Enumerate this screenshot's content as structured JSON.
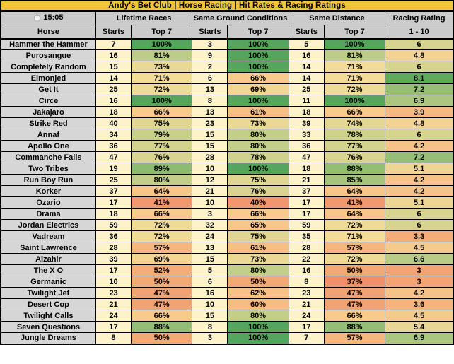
{
  "title": "Andy's Bet Club | Horse Racing | Hit Rates & Racing Ratings",
  "header": {
    "time": "15:05",
    "groups": [
      "Lifetime Races",
      "Same Ground Conditions",
      "Same Distance"
    ],
    "rating_group": "Racing Rating",
    "horse_col": "Horse",
    "starts_col": "Starts",
    "top7_col": "Top 7",
    "rating_col": "1 - 10"
  },
  "colors": {
    "banner_bg": "#F1C43C",
    "header_bg": "#CBCBCB",
    "name_bg": "#D6D6D6",
    "starts_bg": "#FDF2CA",
    "border": "#000000",
    "percent_scale": {
      "min": 37,
      "max": 100,
      "stops": [
        [
          0,
          "#F0906B"
        ],
        [
          0.21,
          "#F3A976"
        ],
        [
          0.46,
          "#F8CA8B"
        ],
        [
          0.54,
          "#F3DC97"
        ],
        [
          0.63,
          "#D5D48F"
        ],
        [
          0.71,
          "#B9CB84"
        ],
        [
          0.82,
          "#90BC74"
        ],
        [
          1,
          "#55A55C"
        ]
      ]
    },
    "rating_scale": {
      "min": 1,
      "max": 10,
      "stops": [
        [
          0,
          "#F08A68"
        ],
        [
          0.22,
          "#F4A474"
        ],
        [
          0.31,
          "#F7B77F"
        ],
        [
          0.42,
          "#F2D392"
        ],
        [
          0.5,
          "#E6D894"
        ],
        [
          0.56,
          "#D5D48E"
        ],
        [
          0.66,
          "#A8C57E"
        ],
        [
          0.7,
          "#8FBB73"
        ],
        [
          0.79,
          "#5FAA5E"
        ],
        [
          1,
          "#3F9B50"
        ]
      ]
    }
  },
  "rows": [
    {
      "horse": "Hammer the Hammer",
      "lifetime_starts": 7,
      "lifetime_top7": 100,
      "ground_starts": 3,
      "ground_top7": 100,
      "distance_starts": 5,
      "distance_top7": 100,
      "rating": 6
    },
    {
      "horse": "Purosangue",
      "lifetime_starts": 16,
      "lifetime_top7": 81,
      "ground_starts": 9,
      "ground_top7": 100,
      "distance_starts": 16,
      "distance_top7": 81,
      "rating": 4.8
    },
    {
      "horse": "Completely Random",
      "lifetime_starts": 15,
      "lifetime_top7": 73,
      "ground_starts": 2,
      "ground_top7": 100,
      "distance_starts": 14,
      "distance_top7": 71,
      "rating": 6
    },
    {
      "horse": "Elmonjed",
      "lifetime_starts": 14,
      "lifetime_top7": 71,
      "ground_starts": 6,
      "ground_top7": 66,
      "distance_starts": 14,
      "distance_top7": 71,
      "rating": 8.1
    },
    {
      "horse": "Get It",
      "lifetime_starts": 25,
      "lifetime_top7": 72,
      "ground_starts": 13,
      "ground_top7": 69,
      "distance_starts": 25,
      "distance_top7": 72,
      "rating": 7.2
    },
    {
      "horse": "Circe",
      "lifetime_starts": 16,
      "lifetime_top7": 100,
      "ground_starts": 8,
      "ground_top7": 100,
      "distance_starts": 11,
      "distance_top7": 100,
      "rating": 6.9
    },
    {
      "horse": "Jakajaro",
      "lifetime_starts": 18,
      "lifetime_top7": 66,
      "ground_starts": 13,
      "ground_top7": 61,
      "distance_starts": 18,
      "distance_top7": 66,
      "rating": 3.9
    },
    {
      "horse": "Strike Red",
      "lifetime_starts": 40,
      "lifetime_top7": 75,
      "ground_starts": 23,
      "ground_top7": 73,
      "distance_starts": 39,
      "distance_top7": 74,
      "rating": 4.8
    },
    {
      "horse": "Annaf",
      "lifetime_starts": 34,
      "lifetime_top7": 79,
      "ground_starts": 15,
      "ground_top7": 80,
      "distance_starts": 33,
      "distance_top7": 78,
      "rating": 6
    },
    {
      "horse": "Apollo One",
      "lifetime_starts": 36,
      "lifetime_top7": 77,
      "ground_starts": 15,
      "ground_top7": 80,
      "distance_starts": 36,
      "distance_top7": 77,
      "rating": 4.2
    },
    {
      "horse": "Commanche Falls",
      "lifetime_starts": 47,
      "lifetime_top7": 76,
      "ground_starts": 28,
      "ground_top7": 78,
      "distance_starts": 47,
      "distance_top7": 76,
      "rating": 7.2
    },
    {
      "horse": "Two Tribes",
      "lifetime_starts": 19,
      "lifetime_top7": 89,
      "ground_starts": 10,
      "ground_top7": 100,
      "distance_starts": 18,
      "distance_top7": 88,
      "rating": 5.1
    },
    {
      "horse": "Run Boy Run",
      "lifetime_starts": 25,
      "lifetime_top7": 80,
      "ground_starts": 12,
      "ground_top7": 75,
      "distance_starts": 21,
      "distance_top7": 85,
      "rating": 4.2
    },
    {
      "horse": "Korker",
      "lifetime_starts": 37,
      "lifetime_top7": 64,
      "ground_starts": 21,
      "ground_top7": 76,
      "distance_starts": 37,
      "distance_top7": 64,
      "rating": 4.2
    },
    {
      "horse": "Ozario",
      "lifetime_starts": 17,
      "lifetime_top7": 41,
      "ground_starts": 10,
      "ground_top7": 40,
      "distance_starts": 17,
      "distance_top7": 41,
      "rating": 5.1
    },
    {
      "horse": "Drama",
      "lifetime_starts": 18,
      "lifetime_top7": 66,
      "ground_starts": 3,
      "ground_top7": 66,
      "distance_starts": 17,
      "distance_top7": 64,
      "rating": 6
    },
    {
      "horse": "Jordan Electrics",
      "lifetime_starts": 59,
      "lifetime_top7": 72,
      "ground_starts": 32,
      "ground_top7": 65,
      "distance_starts": 59,
      "distance_top7": 72,
      "rating": 6
    },
    {
      "horse": "Vadream",
      "lifetime_starts": 36,
      "lifetime_top7": 72,
      "ground_starts": 24,
      "ground_top7": 75,
      "distance_starts": 35,
      "distance_top7": 71,
      "rating": 3.3
    },
    {
      "horse": "Saint Lawrence",
      "lifetime_starts": 28,
      "lifetime_top7": 57,
      "ground_starts": 13,
      "ground_top7": 61,
      "distance_starts": 28,
      "distance_top7": 57,
      "rating": 4.5
    },
    {
      "horse": "Alzahir",
      "lifetime_starts": 39,
      "lifetime_top7": 69,
      "ground_starts": 15,
      "ground_top7": 73,
      "distance_starts": 22,
      "distance_top7": 72,
      "rating": 6.6
    },
    {
      "horse": "The X O",
      "lifetime_starts": 17,
      "lifetime_top7": 52,
      "ground_starts": 5,
      "ground_top7": 80,
      "distance_starts": 16,
      "distance_top7": 50,
      "rating": 3
    },
    {
      "horse": "Germanic",
      "lifetime_starts": 10,
      "lifetime_top7": 50,
      "ground_starts": 6,
      "ground_top7": 50,
      "distance_starts": 8,
      "distance_top7": 37,
      "rating": 3
    },
    {
      "horse": "Twilight Jet",
      "lifetime_starts": 23,
      "lifetime_top7": 47,
      "ground_starts": 16,
      "ground_top7": 62,
      "distance_starts": 23,
      "distance_top7": 47,
      "rating": 4.2
    },
    {
      "horse": "Desert Cop",
      "lifetime_starts": 21,
      "lifetime_top7": 47,
      "ground_starts": 10,
      "ground_top7": 60,
      "distance_starts": 21,
      "distance_top7": 47,
      "rating": 3.6
    },
    {
      "horse": "Twilight Calls",
      "lifetime_starts": 24,
      "lifetime_top7": 66,
      "ground_starts": 15,
      "ground_top7": 80,
      "distance_starts": 24,
      "distance_top7": 66,
      "rating": 4.5
    },
    {
      "horse": "Seven Questions",
      "lifetime_starts": 17,
      "lifetime_top7": 88,
      "ground_starts": 8,
      "ground_top7": 100,
      "distance_starts": 17,
      "distance_top7": 88,
      "rating": 5.4
    },
    {
      "horse": "Jungle Dreams",
      "lifetime_starts": 8,
      "lifetime_top7": 50,
      "ground_starts": 3,
      "ground_top7": 100,
      "distance_starts": 7,
      "distance_top7": 57,
      "rating": 6.9
    }
  ]
}
